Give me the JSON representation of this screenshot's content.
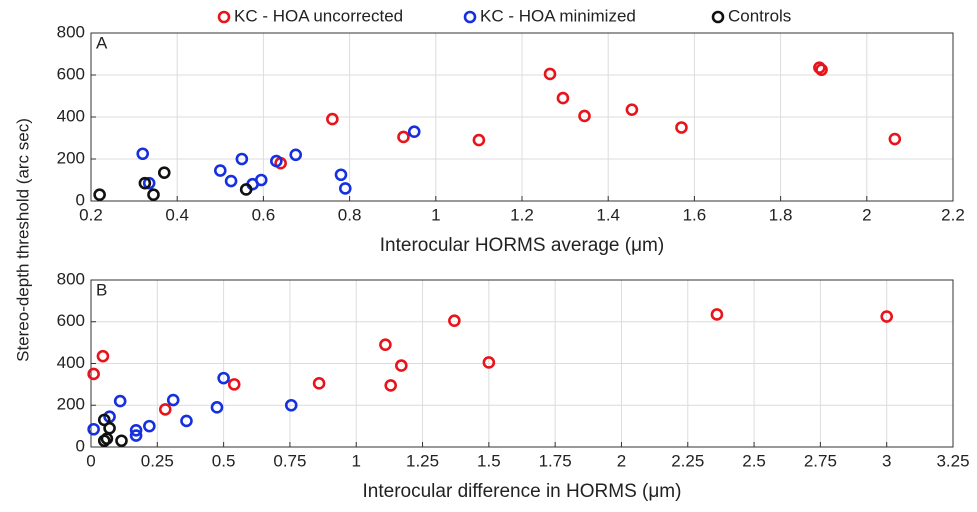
{
  "chart_data": [
    {
      "type": "scatter",
      "annotation": "A",
      "x_label": "Interocular HORMS average (μm)",
      "y_label": "Stereo-depth threshold (arc sec)",
      "xlim": [
        0.2,
        2.2
      ],
      "xticks": [
        0.2,
        0.4,
        0.6,
        0.8,
        1,
        1.2,
        1.4,
        1.6,
        1.8,
        2,
        2.2
      ],
      "ylim": [
        0,
        800
      ],
      "yticks": [
        0,
        200,
        400,
        600,
        800
      ],
      "grid": true,
      "series": [
        {
          "name": "KC - HOA uncorrected",
          "color": "#e8141b",
          "x": [
            0.64,
            0.76,
            0.925,
            1.1,
            1.265,
            1.295,
            1.345,
            1.455,
            1.57,
            1.89,
            1.895,
            2.065
          ],
          "values": [
            180,
            390,
            305,
            290,
            605,
            490,
            405,
            435,
            350,
            635,
            625,
            295
          ]
        },
        {
          "name": "KC - HOA minimized",
          "color": "#1530e0",
          "x": [
            0.32,
            0.335,
            0.5,
            0.525,
            0.55,
            0.575,
            0.595,
            0.63,
            0.675,
            0.78,
            0.79,
            0.95
          ],
          "values": [
            225,
            85,
            145,
            95,
            200,
            80,
            100,
            190,
            220,
            125,
            60,
            330
          ]
        },
        {
          "name": "Controls",
          "color": "#111111",
          "x": [
            0.22,
            0.325,
            0.345,
            0.37,
            0.56
          ],
          "values": [
            30,
            85,
            30,
            135,
            55
          ]
        }
      ]
    },
    {
      "type": "scatter",
      "annotation": "B",
      "x_label": "Interocular difference in HORMS (μm)",
      "xlim": [
        0,
        3.25
      ],
      "xticks": [
        0,
        0.25,
        0.5,
        0.75,
        1,
        1.25,
        1.5,
        1.75,
        2,
        2.25,
        2.5,
        2.75,
        3,
        3.25
      ],
      "ylim": [
        0,
        800
      ],
      "yticks": [
        0,
        200,
        400,
        600,
        800
      ],
      "grid": true,
      "series": [
        {
          "color": "#e8141b",
          "x": [
            0.01,
            0.045,
            0.28,
            0.54,
            0.86,
            1.11,
            1.13,
            1.17,
            1.37,
            1.5,
            2.36,
            3.0
          ],
          "values": [
            350,
            435,
            180,
            300,
            305,
            490,
            295,
            390,
            605,
            405,
            635,
            625
          ]
        },
        {
          "color": "#1530e0",
          "x": [
            0.01,
            0.07,
            0.11,
            0.17,
            0.17,
            0.22,
            0.31,
            0.36,
            0.475,
            0.5,
            0.755
          ],
          "values": [
            85,
            145,
            220,
            80,
            55,
            100,
            225,
            125,
            190,
            330,
            200
          ]
        },
        {
          "color": "#111111",
          "x": [
            0.05,
            0.06,
            0.05,
            0.07,
            0.115
          ],
          "values": [
            130,
            40,
            30,
            90,
            30
          ]
        }
      ]
    }
  ]
}
